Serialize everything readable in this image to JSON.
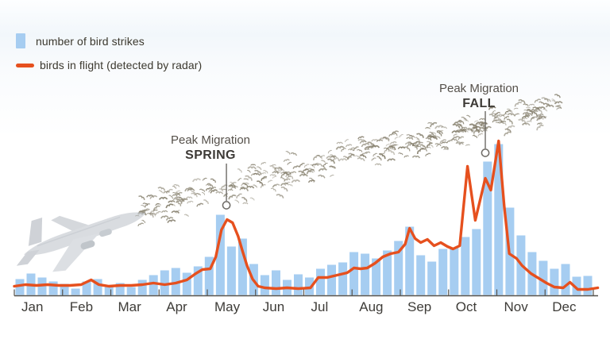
{
  "legend": {
    "items": [
      {
        "label": "number of bird strikes",
        "swatch": "bar-swatch",
        "color": "#A6CDF1"
      },
      {
        "label": "birds in flight (detected by radar)",
        "swatch": "line-swatch",
        "color": "#E6501E"
      }
    ]
  },
  "annotations": {
    "spring": {
      "line1": "Peak Migration",
      "line2": "SPRING"
    },
    "fall": {
      "line1": "Peak Migration",
      "line2": "FALL"
    }
  },
  "decor": {
    "airplane": "faded photo of jet airliner climbing",
    "birds": "scattered flock of migrating birds rising left-to-right"
  },
  "chart_data": {
    "type": "bar",
    "subtype": "weekly bar series with overlaid line series, one calendar year",
    "title": "",
    "xlabel": "",
    "ylabel": "",
    "y_axis_note": "no numeric scale shown; values are relative heights (0-200)",
    "ylim": [
      0,
      200
    ],
    "grid": false,
    "legend_position": "top-left",
    "categories_months": [
      "Jan",
      "Feb",
      "Mar",
      "Apr",
      "May",
      "Jun",
      "Jul",
      "Aug",
      "Sep",
      "Oct",
      "Nov",
      "Dec"
    ],
    "series": [
      {
        "name": "number of bird strikes",
        "type": "bar",
        "color": "#A6CDF1",
        "x_unit": "week index 0-51",
        "values": [
          20,
          27,
          22,
          17,
          14,
          8,
          17,
          20,
          10,
          15,
          10,
          19,
          25,
          31,
          34,
          28,
          36,
          48,
          101,
          61,
          71,
          39,
          25,
          31,
          19,
          26,
          22,
          33,
          38,
          41,
          54,
          52,
          46,
          56,
          68,
          86,
          50,
          42,
          58,
          60,
          73,
          83,
          168,
          190,
          110,
          75,
          54,
          43,
          33,
          39,
          23,
          24
        ]
      },
      {
        "name": "birds in flight (detected by radar)",
        "type": "line",
        "color": "#E6501E",
        "points_week_value": [
          [
            -0.5,
            11
          ],
          [
            0.5,
            13
          ],
          [
            1.5,
            12
          ],
          [
            2.5,
            13
          ],
          [
            3.5,
            12
          ],
          [
            4.5,
            12
          ],
          [
            5.5,
            13
          ],
          [
            6.4,
            19
          ],
          [
            7.1,
            13
          ],
          [
            8,
            11
          ],
          [
            9,
            12
          ],
          [
            10,
            12
          ],
          [
            11,
            13
          ],
          [
            12,
            15
          ],
          [
            13,
            13
          ],
          [
            14,
            15
          ],
          [
            15,
            19
          ],
          [
            15.8,
            27
          ],
          [
            16.4,
            32
          ],
          [
            17.1,
            33
          ],
          [
            17.6,
            48
          ],
          [
            18.1,
            82
          ],
          [
            18.6,
            95
          ],
          [
            19.1,
            91
          ],
          [
            19.6,
            74
          ],
          [
            20,
            55
          ],
          [
            20.4,
            37
          ],
          [
            20.9,
            20
          ],
          [
            21.4,
            11
          ],
          [
            22,
            9
          ],
          [
            23,
            8
          ],
          [
            24,
            9
          ],
          [
            25,
            8
          ],
          [
            26.1,
            9
          ],
          [
            26.8,
            22
          ],
          [
            27.6,
            22
          ],
          [
            28.5,
            25
          ],
          [
            29.4,
            28
          ],
          [
            30,
            34
          ],
          [
            30.6,
            33
          ],
          [
            31.2,
            34
          ],
          [
            31.9,
            40
          ],
          [
            32.6,
            48
          ],
          [
            33.3,
            52
          ],
          [
            34,
            54
          ],
          [
            34.6,
            64
          ],
          [
            35,
            84
          ],
          [
            35.5,
            71
          ],
          [
            36,
            66
          ],
          [
            36.6,
            70
          ],
          [
            37.2,
            62
          ],
          [
            37.8,
            66
          ],
          [
            38.4,
            61
          ],
          [
            38.9,
            58
          ],
          [
            39.5,
            62
          ],
          [
            40.2,
            162
          ],
          [
            40.9,
            94
          ],
          [
            41.8,
            147
          ],
          [
            42.3,
            132
          ],
          [
            43,
            194
          ],
          [
            43.5,
            112
          ],
          [
            43.95,
            52
          ],
          [
            44.6,
            46
          ],
          [
            45.1,
            37
          ],
          [
            45.9,
            27
          ],
          [
            46.6,
            21
          ],
          [
            47.3,
            15
          ],
          [
            48,
            10
          ],
          [
            48.8,
            9
          ],
          [
            49.4,
            16
          ],
          [
            50.1,
            7
          ],
          [
            51,
            7
          ],
          [
            51.9,
            9
          ]
        ]
      }
    ],
    "callouts": [
      {
        "label": "Peak Migration SPRING",
        "week_x": 18.55,
        "marker_value": 113
      },
      {
        "label": "Peak Migration FALL",
        "week_x": 41.8,
        "marker_value": 179
      }
    ]
  }
}
